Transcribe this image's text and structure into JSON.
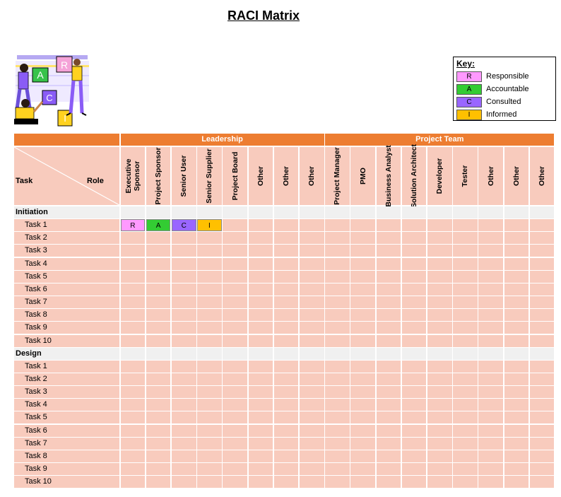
{
  "title": "RACI Matrix",
  "key": {
    "title": "Key:",
    "items": [
      {
        "code": "R",
        "label": "Responsible",
        "color": "#ff99ff"
      },
      {
        "code": "A",
        "label": "Accountable",
        "color": "#33cc33"
      },
      {
        "code": "C",
        "label": "Consulted",
        "color": "#9966ff"
      },
      {
        "code": "I",
        "label": "Informed",
        "color": "#ffc000"
      }
    ]
  },
  "header": {
    "task_label": "Task",
    "role_label": "Role",
    "groups": [
      {
        "name": "Leadership",
        "roles": [
          "Executive Sponsor",
          "Project Sponsor",
          "Senior User",
          "Senior Supplier",
          "Project Board",
          "Other",
          "Other",
          "Other"
        ]
      },
      {
        "name": "Project Team",
        "roles": [
          "Project Manager",
          "PMO",
          "Business Analyst",
          "Solution Architect",
          "Developer",
          "Tester",
          "Other",
          "Other",
          "Other"
        ]
      }
    ]
  },
  "sections": [
    {
      "name": "Initiation",
      "tasks": [
        {
          "label": "Task 1",
          "assign": {
            "0": "R",
            "1": "A",
            "2": "C",
            "3": "I"
          }
        },
        {
          "label": "Task 2"
        },
        {
          "label": "Task 3"
        },
        {
          "label": "Task 4"
        },
        {
          "label": "Task 5"
        },
        {
          "label": "Task 6"
        },
        {
          "label": "Task 7"
        },
        {
          "label": "Task 8"
        },
        {
          "label": "Task 9"
        },
        {
          "label": "Task 10"
        }
      ]
    },
    {
      "name": "Design",
      "tasks": [
        {
          "label": "Task 1"
        },
        {
          "label": "Task 2"
        },
        {
          "label": "Task 3"
        },
        {
          "label": "Task 4"
        },
        {
          "label": "Task 5"
        },
        {
          "label": "Task 6"
        },
        {
          "label": "Task 7"
        },
        {
          "label": "Task 8"
        },
        {
          "label": "Task 9"
        },
        {
          "label": "Task 10"
        }
      ]
    }
  ],
  "colors": {
    "header_orange": "#ed7d31",
    "cell_peach": "#f8cbbd",
    "section_gray": "#f0f0f0"
  },
  "illustration": {
    "letters": [
      "R",
      "A",
      "C",
      "I"
    ]
  }
}
